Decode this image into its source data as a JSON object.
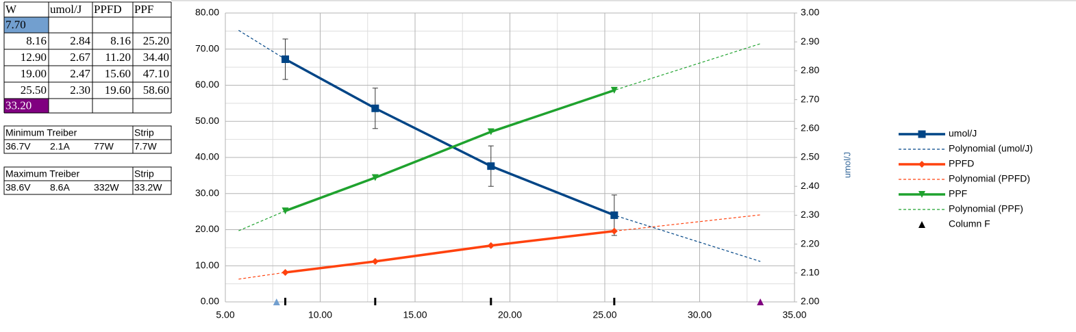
{
  "table": {
    "header": [
      "W",
      "umol/J",
      "PPFD",
      "PPF"
    ],
    "rows": [
      [
        "7.70"
      ],
      [
        "8.16",
        "2.84",
        "8.16",
        "25.20"
      ],
      [
        "12.90",
        "2.67",
        "11.20",
        "34.40"
      ],
      [
        "19.00",
        "2.47",
        "15.60",
        "47.10"
      ],
      [
        "25.50",
        "2.30",
        "19.60",
        "58.60"
      ],
      [
        "33.20"
      ]
    ]
  },
  "minimum": {
    "title": "Minimum Treiber",
    "strip_title": "Strip",
    "values": [
      "36.7V",
      "2.1A",
      "77W",
      "7.7W"
    ]
  },
  "maximum": {
    "title": "Maximum Treiber",
    "strip_title": "Strip",
    "values": [
      "38.6V",
      "8.6A",
      "332W",
      "33.2W"
    ]
  },
  "chart_data": {
    "type": "line",
    "y2label": "umol/J",
    "xlim": [
      5,
      35
    ],
    "xticks": [
      {
        "value": 5,
        "label": "5.00"
      },
      {
        "value": 10,
        "label": "10.00"
      },
      {
        "value": 15,
        "label": "15.00"
      },
      {
        "value": 20,
        "label": "20.00"
      },
      {
        "value": 25,
        "label": "25.00"
      },
      {
        "value": 30,
        "label": "30.00"
      },
      {
        "value": 35,
        "label": "35.00"
      }
    ],
    "ylim": [
      0,
      80
    ],
    "yticks": [
      {
        "value": 0,
        "label": "0.00"
      },
      {
        "value": 10,
        "label": "10.00"
      },
      {
        "value": 20,
        "label": "20.00"
      },
      {
        "value": 30,
        "label": "30.00"
      },
      {
        "value": 40,
        "label": "40.00"
      },
      {
        "value": 50,
        "label": "50.00"
      },
      {
        "value": 60,
        "label": "60.00"
      },
      {
        "value": 70,
        "label": "70.00"
      },
      {
        "value": 80,
        "label": "80.00"
      }
    ],
    "y2lim": [
      2,
      3
    ],
    "y2ticks": [
      {
        "value": 2,
        "label": "2.00"
      },
      {
        "value": 2.1,
        "label": "2.10"
      },
      {
        "value": 2.2,
        "label": "2.20"
      },
      {
        "value": 2.3,
        "label": "2.30"
      },
      {
        "value": 2.4,
        "label": "2.40"
      },
      {
        "value": 2.5,
        "label": "2.50"
      },
      {
        "value": 2.6,
        "label": "2.60"
      },
      {
        "value": 2.7,
        "label": "2.70"
      },
      {
        "value": 2.8,
        "label": "2.80"
      },
      {
        "value": 2.9,
        "label": "2.90"
      },
      {
        "value": 3,
        "label": "3.00"
      }
    ],
    "grid": true,
    "minor_grid": true,
    "legend": "right",
    "series": [
      {
        "name": "umol/J",
        "color": "#004586",
        "axis": "y2",
        "style": "solid",
        "marker": "square",
        "x": [
          8.16,
          12.9,
          19,
          25.5
        ],
        "values": [
          2.84,
          2.67,
          2.47,
          2.3
        ],
        "errors": [
          0.07,
          0.07,
          0.07,
          0.07
        ]
      },
      {
        "name": "Polynomial (umol/J)",
        "color": "#004586",
        "axis": "y2",
        "style": "dashed",
        "marker": "none",
        "x": [
          5.7,
          8.16,
          12.9,
          19,
          25.5,
          33.2
        ],
        "values": [
          2.94,
          2.84,
          2.67,
          2.47,
          2.3,
          2.14
        ]
      },
      {
        "name": "PPFD",
        "color": "#ff420e",
        "style": "solid",
        "marker": "diamond",
        "x": [
          8.16,
          12.9,
          19,
          25.5
        ],
        "values": [
          8.16,
          11.2,
          15.6,
          19.6
        ]
      },
      {
        "name": "Polynomial (PPFD)",
        "color": "#ff420e",
        "style": "dashed",
        "marker": "none",
        "x": [
          5.7,
          8.16,
          12.9,
          19,
          25.5,
          33.2
        ],
        "values": [
          6.3,
          8.16,
          11.2,
          15.6,
          19.6,
          24.1
        ]
      },
      {
        "name": "PPF",
        "color": "#1fa22e",
        "style": "solid",
        "marker": "triangle-down",
        "x": [
          8.16,
          12.9,
          19,
          25.5
        ],
        "values": [
          25.2,
          34.4,
          47.1,
          58.6
        ]
      },
      {
        "name": "Polynomial (PPF)",
        "color": "#1fa22e",
        "style": "dashed",
        "marker": "none",
        "x": [
          5.7,
          8.16,
          12.9,
          19,
          25.5,
          33.2
        ],
        "values": [
          19.7,
          25.2,
          34.4,
          47.1,
          58.6,
          71.5
        ]
      },
      {
        "name": "Column F",
        "color": "#000000",
        "style": "none",
        "marker": "triangle",
        "x": [
          7.7,
          8.16,
          12.9,
          19,
          25.5,
          33.2
        ],
        "values": [
          0,
          0,
          0,
          0,
          0,
          0
        ],
        "point_colors": [
          "#729fcf",
          "#000000",
          "#000000",
          "#000000",
          "#000000",
          "#800080"
        ],
        "point_markers": [
          "triangle",
          "bar",
          "bar",
          "bar",
          "bar",
          "triangle"
        ]
      }
    ]
  }
}
